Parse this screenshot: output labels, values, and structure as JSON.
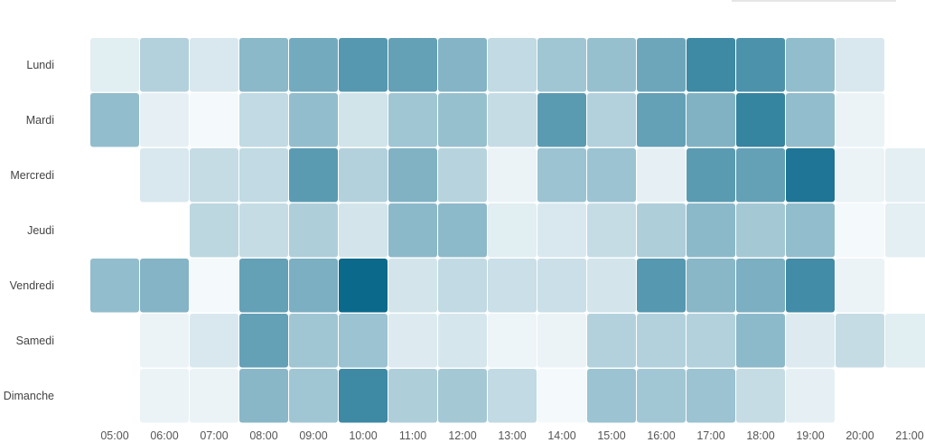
{
  "chart_data": {
    "type": "heatmap",
    "title": "",
    "xlabel": "",
    "ylabel": "",
    "x": [
      "05:00",
      "06:00",
      "07:00",
      "08:00",
      "09:00",
      "10:00",
      "11:00",
      "12:00",
      "13:00",
      "14:00",
      "15:00",
      "16:00",
      "17:00",
      "18:00",
      "19:00",
      "20:00",
      "21:00"
    ],
    "y": [
      "Lundi",
      "Mardi",
      "Mercredi",
      "Jeudi",
      "Vendredi",
      "Samedi",
      "Dimanche"
    ],
    "value_range": [
      0,
      1
    ],
    "values": [
      [
        0.08,
        0.28,
        0.12,
        0.45,
        0.55,
        0.68,
        0.62,
        0.48,
        0.22,
        0.36,
        0.4,
        0.58,
        0.78,
        0.72,
        0.42,
        0.12,
        null
      ],
      [
        0.42,
        0.06,
        0.0,
        0.22,
        0.42,
        0.15,
        0.36,
        0.4,
        0.2,
        0.66,
        0.28,
        0.62,
        0.5,
        0.82,
        0.42,
        0.04,
        null
      ],
      [
        null,
        0.12,
        0.2,
        0.22,
        0.66,
        0.28,
        0.5,
        0.26,
        0.04,
        0.38,
        0.38,
        0.06,
        0.66,
        0.62,
        0.92,
        0.04,
        0.07
      ],
      [
        null,
        null,
        0.24,
        0.2,
        0.3,
        0.14,
        0.45,
        0.44,
        0.08,
        0.12,
        0.2,
        0.3,
        0.45,
        0.34,
        0.42,
        0.0,
        0.07
      ],
      [
        0.42,
        0.48,
        0.0,
        0.62,
        0.52,
        1.0,
        0.14,
        0.22,
        0.18,
        0.18,
        0.14,
        0.68,
        0.46,
        0.52,
        0.76,
        0.04,
        null
      ],
      [
        null,
        0.04,
        0.12,
        0.62,
        0.36,
        0.38,
        0.1,
        0.13,
        0.03,
        0.04,
        0.28,
        0.28,
        0.28,
        0.44,
        0.1,
        0.2,
        0.08
      ],
      [
        null,
        0.04,
        0.04,
        0.46,
        0.36,
        0.78,
        0.3,
        0.34,
        0.22,
        0.0,
        0.38,
        0.35,
        0.38,
        0.2,
        0.06,
        null,
        null
      ]
    ],
    "color_low": "#f4f9fb",
    "color_high": "#0b6a8c",
    "legend": "none",
    "grid": false
  }
}
